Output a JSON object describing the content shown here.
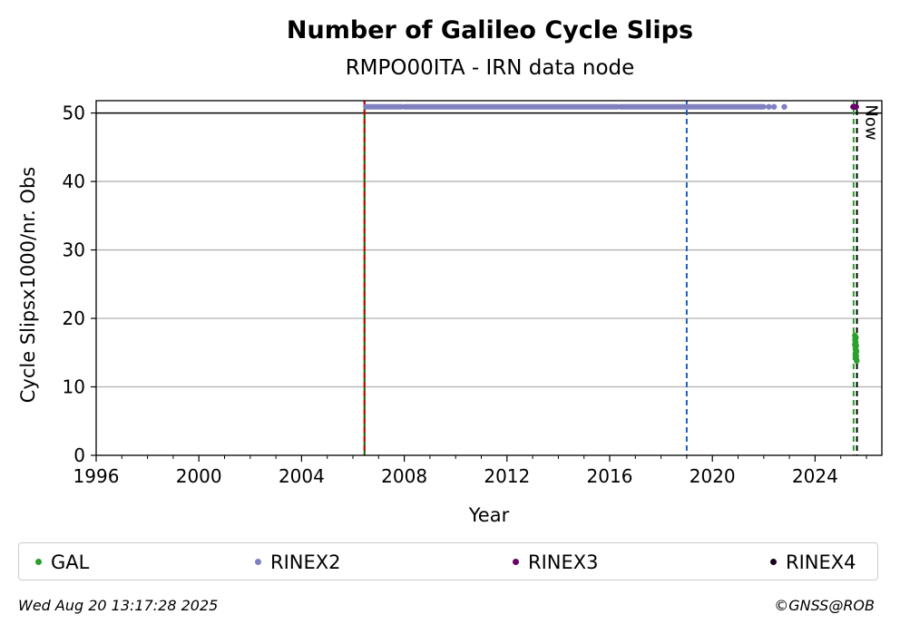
{
  "chart_data": {
    "type": "scatter",
    "title": "Number of Galileo Cycle Slips",
    "subtitle": "RMPO00ITA - IRN data node",
    "xlabel": "Year",
    "ylabel": "Cycle Slipsx1000/nr. Obs",
    "xlim": [
      1996.0,
      2026.6
    ],
    "ylim": [
      0,
      51.8
    ],
    "x_ticks": [
      1996,
      2000,
      2004,
      2008,
      2012,
      2016,
      2020,
      2024
    ],
    "y_ticks": [
      0,
      10,
      20,
      30,
      40,
      50
    ],
    "grid": "horizontal",
    "hline": 50,
    "vlines": [
      {
        "x": 2006.45,
        "color": "#006400",
        "style": "solid"
      },
      {
        "x": 2006.45,
        "color": "#cc0000",
        "style": "dashed"
      },
      {
        "x": 2019.0,
        "color": "#1f5fbf",
        "style": "dashed"
      },
      {
        "x": 2025.5,
        "color": "#2ca02c",
        "style": "dashed"
      },
      {
        "x": 2025.63,
        "color": "#000000",
        "style": "dashed"
      }
    ],
    "now_label": "Now",
    "now_x": 2025.63,
    "series": [
      {
        "name": "GAL",
        "color": "#2ca02c",
        "points": [
          [
            2025.55,
            17.5
          ],
          [
            2025.56,
            16.8
          ],
          [
            2025.57,
            16.0
          ],
          [
            2025.58,
            15.5
          ],
          [
            2025.59,
            15.0
          ],
          [
            2025.6,
            14.5
          ],
          [
            2025.61,
            14.0
          ],
          [
            2025.62,
            13.8
          ],
          [
            2025.55,
            16.2
          ],
          [
            2025.56,
            17.0
          ],
          [
            2025.58,
            16.5
          ],
          [
            2025.59,
            17.2
          ],
          [
            2025.6,
            16.0
          ],
          [
            2025.61,
            15.2
          ],
          [
            2025.57,
            14.8
          ]
        ]
      },
      {
        "name": "RINEX2",
        "color": "#8080c0",
        "segments": [
          [
            2006.5,
            2007.9
          ],
          [
            2008.0,
            2016.3
          ],
          [
            2016.4,
            2022.0
          ]
        ],
        "points": [
          [
            2022.2,
            50.9
          ],
          [
            2022.4,
            50.9
          ],
          [
            2022.8,
            50.9
          ]
        ],
        "y": 50.9
      },
      {
        "name": "RINEX3",
        "color": "#6a006a",
        "points": [
          [
            2025.48,
            50.9
          ],
          [
            2025.52,
            50.9
          ],
          [
            2025.56,
            50.9
          ],
          [
            2025.6,
            50.9
          ]
        ]
      },
      {
        "name": "RINEX4",
        "color": "#1a0020",
        "points": []
      }
    ]
  },
  "footer": {
    "timestamp": "Wed Aug 20 13:17:28 2025",
    "copyright": "©GNSS@ROB"
  }
}
